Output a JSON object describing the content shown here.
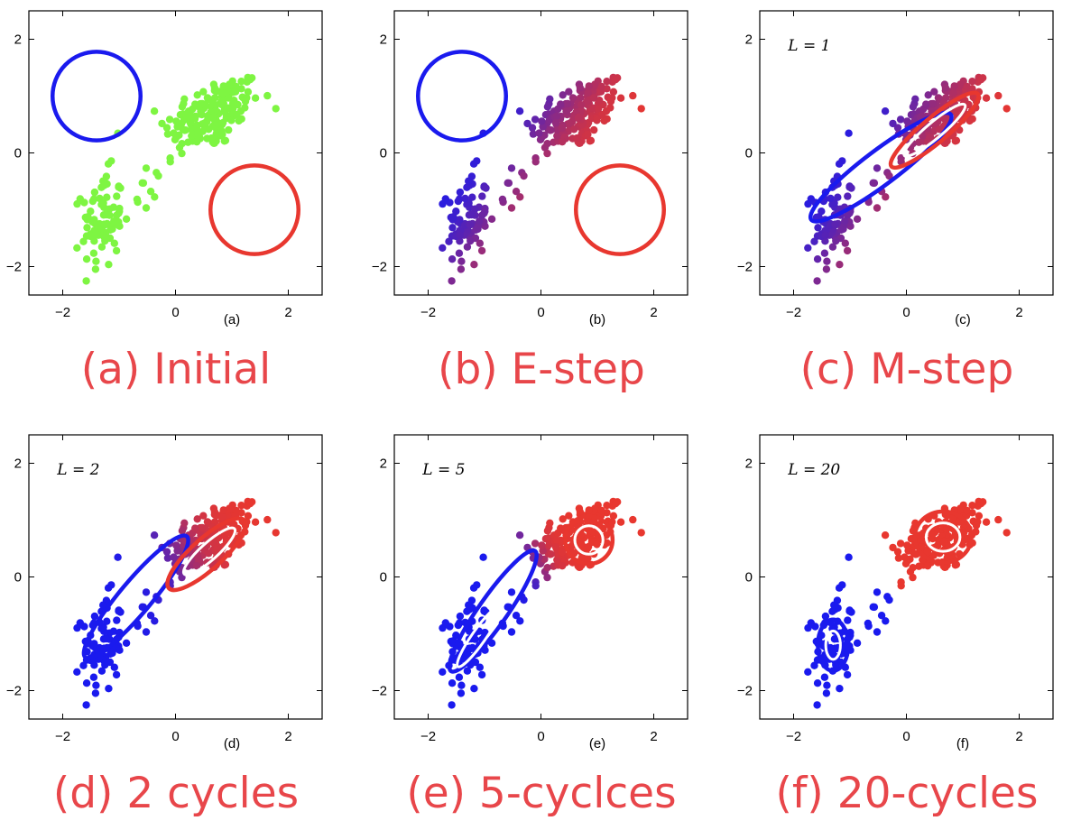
{
  "colors": {
    "green": "#7ef542",
    "blue": "#1a1aee",
    "red": "#e8372f",
    "caption": "#e8464a"
  },
  "chart_data": [
    {
      "type": "scatter",
      "sublabel": "(a)",
      "caption": "(a) Initial",
      "annotation": "",
      "coloring": "green",
      "xlim": [
        -2.6,
        2.6
      ],
      "ylim": [
        -2.5,
        2.5
      ],
      "xticks": [
        "−2",
        "0",
        "2"
      ],
      "yticks": [
        "2",
        "0",
        "−2"
      ],
      "contours": [
        {
          "color": "blue",
          "cx": -1.4,
          "cy": 1.0,
          "rx": 0.78,
          "ry": 0.78,
          "angle": 0
        },
        {
          "color": "red",
          "cx": 1.4,
          "cy": -1.0,
          "rx": 0.78,
          "ry": 0.78,
          "angle": 0
        }
      ]
    },
    {
      "type": "scatter",
      "sublabel": "(b)",
      "caption": "(b) E-step",
      "annotation": "",
      "coloring": "initial-responsibility",
      "xlim": [
        -2.6,
        2.6
      ],
      "ylim": [
        -2.5,
        2.5
      ],
      "xticks": [
        "−2",
        "0",
        "2"
      ],
      "yticks": [
        "2",
        "0",
        "−2"
      ],
      "contours": [
        {
          "color": "blue",
          "cx": -1.4,
          "cy": 1.0,
          "rx": 0.78,
          "ry": 0.78,
          "angle": 0
        },
        {
          "color": "red",
          "cx": 1.4,
          "cy": -1.0,
          "rx": 0.78,
          "ry": 0.78,
          "angle": 0
        }
      ]
    },
    {
      "type": "scatter",
      "sublabel": "(c)",
      "caption": "(c) M-step",
      "annotation": "L = 1",
      "coloring": "initial-responsibility",
      "xlim": [
        -2.6,
        2.6
      ],
      "ylim": [
        -2.5,
        2.5
      ],
      "xticks": [
        "−2",
        "0",
        "2"
      ],
      "yticks": [
        "2",
        "0",
        "−2"
      ],
      "contours": [
        {
          "color": "blue",
          "cx": -0.45,
          "cy": -0.25,
          "rx": 1.55,
          "ry": 0.3,
          "angle": 37
        },
        {
          "color": "red",
          "cx": 0.5,
          "cy": 0.4,
          "rx": 1.0,
          "ry": 0.22,
          "angle": 40
        },
        {
          "color": "white",
          "cx": 0.5,
          "cy": 0.4,
          "rx": 0.7,
          "ry": 0.14,
          "angle": 40
        }
      ]
    },
    {
      "type": "scatter",
      "sublabel": "(d)",
      "caption": "(d) 2 cycles",
      "annotation": "L = 2",
      "coloring": "responsibility-2",
      "xlim": [
        -2.6,
        2.6
      ],
      "ylim": [
        -2.5,
        2.5
      ],
      "xticks": [
        "−2",
        "0",
        "2"
      ],
      "yticks": [
        "2",
        "0",
        "−2"
      ],
      "contours": [
        {
          "color": "blue",
          "cx": -0.7,
          "cy": -0.35,
          "rx": 1.4,
          "ry": 0.28,
          "angle": 50
        },
        {
          "color": "red",
          "cx": 0.55,
          "cy": 0.4,
          "rx": 0.9,
          "ry": 0.27,
          "angle": 42
        },
        {
          "color": "white",
          "cx": 0.6,
          "cy": 0.45,
          "rx": 0.6,
          "ry": 0.15,
          "angle": 42
        }
      ]
    },
    {
      "type": "scatter",
      "sublabel": "(e)",
      "caption": "(e) 5-cyclces",
      "annotation": "L = 5",
      "coloring": "responsibility-5",
      "xlim": [
        -2.6,
        2.6
      ],
      "ylim": [
        -2.5,
        2.5
      ],
      "xticks": [
        "−2",
        "0",
        "2"
      ],
      "yticks": [
        "2",
        "0",
        "−2"
      ],
      "contours": [
        {
          "color": "blue",
          "cx": -0.85,
          "cy": -0.6,
          "rx": 1.3,
          "ry": 0.25,
          "angle": 55
        },
        {
          "color": "white",
          "cx": -1.1,
          "cy": -1.05,
          "rx": 0.65,
          "ry": 0.12,
          "angle": 55
        },
        {
          "color": "red",
          "cx": 0.85,
          "cy": 0.65,
          "rx": 0.42,
          "ry": 0.42,
          "angle": 0
        },
        {
          "color": "white",
          "cx": 0.85,
          "cy": 0.65,
          "rx": 0.25,
          "ry": 0.25,
          "angle": 0
        }
      ]
    },
    {
      "type": "scatter",
      "sublabel": "(f)",
      "caption": "(f) 20-cycles",
      "annotation": "L = 20",
      "coloring": "final-cluster",
      "xlim": [
        -2.6,
        2.6
      ],
      "ylim": [
        -2.5,
        2.5
      ],
      "xticks": [
        "−2",
        "0",
        "2"
      ],
      "yticks": [
        "2",
        "0",
        "−2"
      ],
      "contours": [
        {
          "color": "blue",
          "cx": -1.3,
          "cy": -1.2,
          "rx": 0.27,
          "ry": 0.45,
          "angle": 0
        },
        {
          "color": "white",
          "cx": -1.3,
          "cy": -1.2,
          "rx": 0.13,
          "ry": 0.25,
          "angle": 0
        },
        {
          "color": "red",
          "cx": 0.65,
          "cy": 0.7,
          "rx": 0.5,
          "ry": 0.45,
          "angle": 0
        },
        {
          "color": "white",
          "cx": 0.65,
          "cy": 0.7,
          "rx": 0.3,
          "ry": 0.25,
          "angle": 0
        }
      ]
    }
  ]
}
